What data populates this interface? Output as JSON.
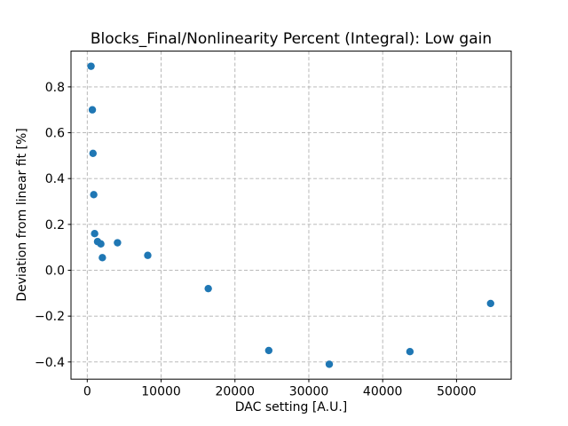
{
  "chart_data": {
    "type": "scatter",
    "title": "Blocks_Final/Nonlinearity Percent (Integral): Low gain",
    "xlabel": "DAC setting [A.U.]",
    "ylabel": "Deviation from linear fit [%]",
    "xlim": [
      -2200,
      57400
    ],
    "ylim": [
      -0.475,
      0.956
    ],
    "x_ticks": [
      0,
      10000,
      20000,
      30000,
      40000,
      50000
    ],
    "y_ticks": [
      0.8,
      0.6,
      0.4,
      0.2,
      0.0,
      -0.2,
      -0.4
    ],
    "grid": true,
    "grid_style": "dashed",
    "grid_color": "#b0b0b0",
    "legend": false,
    "marker_color": "#1f77b4",
    "spine_color": "#000000",
    "points": [
      {
        "x": 512,
        "y": 0.89
      },
      {
        "x": 690,
        "y": 0.7
      },
      {
        "x": 780,
        "y": 0.51
      },
      {
        "x": 880,
        "y": 0.33
      },
      {
        "x": 1000,
        "y": 0.16
      },
      {
        "x": 1400,
        "y": 0.125
      },
      {
        "x": 1840,
        "y": 0.115
      },
      {
        "x": 2048,
        "y": 0.055
      },
      {
        "x": 4096,
        "y": 0.12
      },
      {
        "x": 8192,
        "y": 0.065
      },
      {
        "x": 16384,
        "y": -0.08
      },
      {
        "x": 24576,
        "y": -0.35
      },
      {
        "x": 32768,
        "y": -0.41
      },
      {
        "x": 43690,
        "y": -0.355
      },
      {
        "x": 54610,
        "y": -0.145
      }
    ]
  }
}
